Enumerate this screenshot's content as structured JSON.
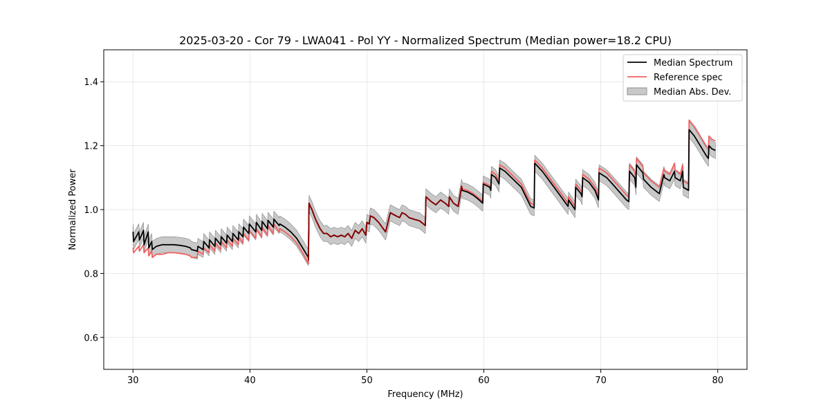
{
  "chart_data": {
    "type": "line",
    "title": "2025-03-20 - Cor 79 - LWA041 - Pol YY - Normalized Spectrum (Median power=18.2 CPU)",
    "xlabel": "Frequency (MHz)",
    "ylabel": "Normalized Power",
    "xlim": [
      27.5,
      82.5
    ],
    "ylim": [
      0.5,
      1.5
    ],
    "xticks": [
      30,
      40,
      50,
      60,
      70,
      80
    ],
    "xtick_labels": [
      "30",
      "40",
      "50",
      "60",
      "70",
      "80"
    ],
    "yticks": [
      0.6,
      0.8,
      1.0,
      1.2,
      1.4
    ],
    "ytick_labels": [
      "0.6",
      "0.8",
      "1.0",
      "1.2",
      "1.4"
    ],
    "grid": true,
    "legend_position": "top-right",
    "legend": [
      "Median Spectrum",
      "Reference spec",
      "Median Abs. Dev."
    ],
    "colors": {
      "median": "#000000",
      "reference": "#f06060",
      "mad_fill": "#b0b0b0",
      "mad_edge": "#808080",
      "overlap": "#8b0000"
    },
    "series": [
      {
        "name": "Median Spectrum",
        "x": [
          30.0,
          30.05,
          30.5,
          30.55,
          30.9,
          30.95,
          31.3,
          31.35,
          31.6,
          31.65,
          32.0,
          32.5,
          33.0,
          33.5,
          34.0,
          34.5,
          34.9,
          35.0,
          35.5,
          35.55,
          36.0,
          36.05,
          36.5,
          36.55,
          37.0,
          37.05,
          37.5,
          37.55,
          38.0,
          38.05,
          38.5,
          38.55,
          39.0,
          39.05,
          39.4,
          39.45,
          39.9,
          39.95,
          40.5,
          40.55,
          41.0,
          41.05,
          41.5,
          41.55,
          42.0,
          42.05,
          42.5,
          42.55,
          43.0,
          43.5,
          44.0,
          44.5,
          45.0,
          45.05,
          45.1,
          45.3,
          45.6,
          46.0,
          46.3,
          46.6,
          46.9,
          47.2,
          47.5,
          47.8,
          48.1,
          48.4,
          48.7,
          49.0,
          49.3,
          49.6,
          49.9,
          50.0,
          50.2,
          50.3,
          50.6,
          51.0,
          51.3,
          51.6,
          52.0,
          52.5,
          52.8,
          53.0,
          53.3,
          53.6,
          54.0,
          54.5,
          55.0,
          55.05,
          55.5,
          55.9,
          56.3,
          56.7,
          57.0,
          57.05,
          57.4,
          57.8,
          58.1,
          58.15,
          58.6,
          59.1,
          59.6,
          59.9,
          59.95,
          60.5,
          60.6,
          60.65,
          61.0,
          61.3,
          61.35,
          61.8,
          62.5,
          63.2,
          64.0,
          64.3,
          64.35,
          65.0,
          65.7,
          66.4,
          67.0,
          67.2,
          67.25,
          67.8,
          67.85,
          68.3,
          68.4,
          68.45,
          69.0,
          69.5,
          69.8,
          69.85,
          70.5,
          71.0,
          71.6,
          72.2,
          72.4,
          72.45,
          72.9,
          73.0,
          73.05,
          73.6,
          73.65,
          74.3,
          75.0,
          75.4,
          75.45,
          75.9,
          76.3,
          76.35,
          76.8,
          77.0,
          77.05,
          77.5,
          77.55,
          78.0,
          78.5,
          79.0,
          79.2,
          79.25,
          79.5,
          79.8
        ],
        "y": [
          0.93,
          0.9,
          0.93,
          0.905,
          0.935,
          0.89,
          0.93,
          0.88,
          0.9,
          0.875,
          0.885,
          0.89,
          0.89,
          0.89,
          0.888,
          0.885,
          0.88,
          0.875,
          0.87,
          0.885,
          0.875,
          0.9,
          0.88,
          0.905,
          0.885,
          0.91,
          0.89,
          0.915,
          0.895,
          0.92,
          0.9,
          0.925,
          0.905,
          0.93,
          0.915,
          0.945,
          0.925,
          0.955,
          0.93,
          0.96,
          0.935,
          0.963,
          0.94,
          0.966,
          0.945,
          0.97,
          0.95,
          0.955,
          0.945,
          0.93,
          0.91,
          0.88,
          0.85,
          1.02,
          1.015,
          1.0,
          0.97,
          0.94,
          0.925,
          0.925,
          0.915,
          0.92,
          0.915,
          0.92,
          0.915,
          0.925,
          0.91,
          0.935,
          0.925,
          0.94,
          0.92,
          0.96,
          0.955,
          0.98,
          0.975,
          0.96,
          0.945,
          0.93,
          0.99,
          0.98,
          0.975,
          0.99,
          0.985,
          0.975,
          0.97,
          0.965,
          0.95,
          1.04,
          1.025,
          1.015,
          1.03,
          1.02,
          1.01,
          1.04,
          1.02,
          1.01,
          1.07,
          1.06,
          1.055,
          1.045,
          1.03,
          1.02,
          1.08,
          1.07,
          1.06,
          1.11,
          1.1,
          1.08,
          1.13,
          1.12,
          1.095,
          1.07,
          1.01,
          1.005,
          1.145,
          1.12,
          1.085,
          1.05,
          1.02,
          1.01,
          1.03,
          1.0,
          1.07,
          1.05,
          1.04,
          1.1,
          1.085,
          1.06,
          1.03,
          1.115,
          1.1,
          1.08,
          1.055,
          1.03,
          1.025,
          1.12,
          1.1,
          1.07,
          1.14,
          1.115,
          1.095,
          1.07,
          1.05,
          1.11,
          1.1,
          1.09,
          1.12,
          1.1,
          1.09,
          1.12,
          1.07,
          1.06,
          1.25,
          1.23,
          1.2,
          1.17,
          1.16,
          1.2,
          1.19,
          1.185
        ]
      },
      {
        "name": "Reference spec",
        "x": [
          30.0,
          30.05,
          30.5,
          30.55,
          30.9,
          30.95,
          31.3,
          31.35,
          31.6,
          31.65,
          32.0,
          32.5,
          33.0,
          33.5,
          34.0,
          34.5,
          34.9,
          35.0,
          35.5,
          35.55,
          36.0,
          36.05,
          36.5,
          36.55,
          37.0,
          37.05,
          37.5,
          37.55,
          38.0,
          38.05,
          38.5,
          38.55,
          39.0,
          39.05,
          39.4,
          39.45,
          39.9,
          39.95,
          40.5,
          40.55,
          41.0,
          41.05,
          41.5,
          41.55,
          42.0,
          42.05,
          42.5,
          42.55,
          43.0,
          43.5,
          44.0,
          44.5,
          45.0,
          45.05,
          45.1,
          45.3,
          45.6,
          46.0,
          46.3,
          46.6,
          46.9,
          47.2,
          47.5,
          47.8,
          48.1,
          48.4,
          48.7,
          49.0,
          49.3,
          49.6,
          49.9,
          50.0,
          50.2,
          50.3,
          50.6,
          51.0,
          51.3,
          51.6,
          52.0,
          52.5,
          52.8,
          53.0,
          53.3,
          53.6,
          54.0,
          54.5,
          55.0,
          55.05,
          55.5,
          55.9,
          56.3,
          56.7,
          57.0,
          57.05,
          57.4,
          57.8,
          58.1,
          58.15,
          58.6,
          59.1,
          59.6,
          59.9,
          59.95,
          60.5,
          60.6,
          60.65,
          61.0,
          61.3,
          61.35,
          61.8,
          62.5,
          63.2,
          64.0,
          64.3,
          64.35,
          65.0,
          65.7,
          66.4,
          67.0,
          67.2,
          67.25,
          67.8,
          67.85,
          68.3,
          68.4,
          68.45,
          69.0,
          69.5,
          69.8,
          69.85,
          70.5,
          71.0,
          71.6,
          72.2,
          72.4,
          72.45,
          72.9,
          73.0,
          73.05,
          73.6,
          73.65,
          74.3,
          75.0,
          75.4,
          75.45,
          75.9,
          76.3,
          76.35,
          76.8,
          77.0,
          77.05,
          77.5,
          77.55,
          78.0,
          78.5,
          79.0,
          79.2,
          79.25,
          79.5,
          79.8
        ],
        "y": [
          0.88,
          0.865,
          0.885,
          0.87,
          0.89,
          0.865,
          0.88,
          0.855,
          0.87,
          0.85,
          0.86,
          0.86,
          0.865,
          0.865,
          0.863,
          0.86,
          0.855,
          0.85,
          0.85,
          0.87,
          0.86,
          0.88,
          0.865,
          0.89,
          0.87,
          0.895,
          0.875,
          0.9,
          0.88,
          0.905,
          0.885,
          0.91,
          0.89,
          0.915,
          0.895,
          0.925,
          0.905,
          0.935,
          0.91,
          0.94,
          0.915,
          0.945,
          0.92,
          0.95,
          0.925,
          0.955,
          0.93,
          0.94,
          0.93,
          0.915,
          0.895,
          0.865,
          0.83,
          1.02,
          1.015,
          1.0,
          0.97,
          0.94,
          0.925,
          0.925,
          0.915,
          0.92,
          0.915,
          0.92,
          0.915,
          0.925,
          0.91,
          0.935,
          0.925,
          0.94,
          0.92,
          0.96,
          0.955,
          0.98,
          0.975,
          0.96,
          0.945,
          0.93,
          0.99,
          0.98,
          0.975,
          0.99,
          0.985,
          0.975,
          0.97,
          0.965,
          0.95,
          1.04,
          1.025,
          1.015,
          1.03,
          1.02,
          1.01,
          1.04,
          1.02,
          1.01,
          1.075,
          1.065,
          1.06,
          1.05,
          1.035,
          1.025,
          1.085,
          1.075,
          1.065,
          1.12,
          1.11,
          1.09,
          1.14,
          1.13,
          1.105,
          1.08,
          1.02,
          1.015,
          1.155,
          1.13,
          1.095,
          1.06,
          1.03,
          1.02,
          1.04,
          1.01,
          1.08,
          1.06,
          1.05,
          1.11,
          1.095,
          1.07,
          1.04,
          1.13,
          1.115,
          1.095,
          1.07,
          1.045,
          1.04,
          1.14,
          1.12,
          1.09,
          1.16,
          1.135,
          1.115,
          1.09,
          1.07,
          1.13,
          1.12,
          1.11,
          1.145,
          1.125,
          1.11,
          1.14,
          1.09,
          1.08,
          1.28,
          1.26,
          1.23,
          1.2,
          1.19,
          1.23,
          1.22,
          1.215
        ]
      },
      {
        "name": "Median Abs. Dev.",
        "half_width": 0.025
      }
    ]
  }
}
